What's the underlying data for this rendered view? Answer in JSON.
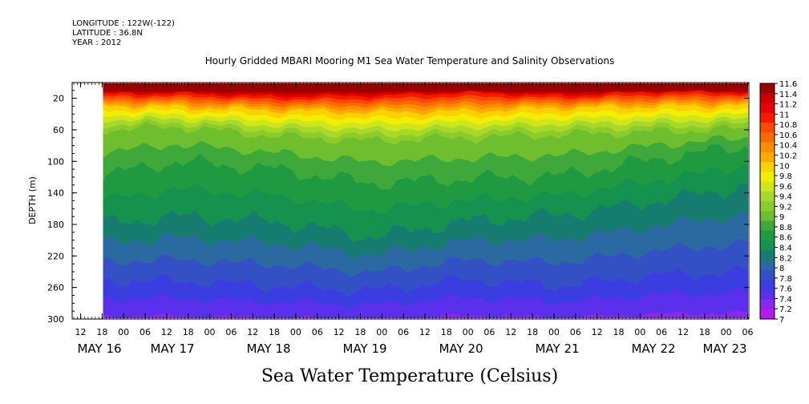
{
  "header": {
    "longitude": "LONGITUDE : 122W(-122)",
    "latitude": "LATITUDE : 36.8N",
    "year": "YEAR : 2012"
  },
  "chart_data": {
    "type": "heatmap",
    "title": "Hourly Gridded MBARI Mooring M1 Sea Water Temperature and Salinity Observations",
    "xlabel": "",
    "ylabel": "DEPTH (m)",
    "colorbar_label": "Sea Water Temperature (Celsius)",
    "y_axis": {
      "ticks": [
        20,
        60,
        100,
        140,
        180,
        220,
        260,
        300
      ],
      "range": [
        10,
        300
      ],
      "inverted": true
    },
    "x_axis": {
      "hour_tick_labels": [
        "12",
        "18",
        "00",
        "06",
        "12",
        "18",
        "00",
        "06",
        "12",
        "18",
        "00",
        "06",
        "12",
        "18",
        "00",
        "06",
        "12",
        "18",
        "00",
        "06",
        "12",
        "18",
        "00",
        "06",
        "12",
        "18",
        "00",
        "06",
        "12",
        "18",
        "00",
        "06"
      ],
      "day_labels": [
        "MAY 16",
        "MAY 17",
        "MAY 18",
        "MAY 19",
        "MAY 20",
        "MAY 21",
        "MAY 22",
        "MAY 23"
      ],
      "range_hours_from_first_tick": [
        0,
        282
      ]
    },
    "data_start_label": "MAY 16 18",
    "colorbar": {
      "levels": [
        "11.6",
        "11.4",
        "11.2",
        "11",
        "10.8",
        "10.6",
        "10.4",
        "10.2",
        "10",
        "9.8",
        "9.6",
        "9.4",
        "9.2",
        "9",
        "8.8",
        "8.6",
        "8.4",
        "8.2",
        "8",
        "7.8",
        "7.6",
        "7.4",
        "7.2",
        "7"
      ],
      "colors": [
        "#9a0000",
        "#c80000",
        "#e60000",
        "#f81800",
        "#fa4a00",
        "#fb6a00",
        "#fc8c00",
        "#fdaa00",
        "#fdd000",
        "#f2ee00",
        "#cfe61c",
        "#a8d82a",
        "#8ccc2a",
        "#6fbe2e",
        "#3ea83a",
        "#1f9a40",
        "#14924e",
        "#177c70",
        "#2a6aa0",
        "#3350c4",
        "#3a3ee0",
        "#5a30ec",
        "#8a28f0",
        "#b818f4"
      ],
      "range": [
        7,
        11.6
      ]
    },
    "approx_isotherm_depths_m": {
      "time_hours_from_first_tick": [
        6,
        40,
        80,
        120,
        160,
        200,
        240,
        282
      ],
      "t11_0": [
        15,
        14,
        18,
        17,
        13,
        17,
        12,
        13
      ],
      "t10_0": [
        29,
        31,
        35,
        38,
        36,
        32,
        30,
        28
      ],
      "t9_0": [
        60,
        56,
        68,
        74,
        70,
        66,
        62,
        58
      ],
      "t8_6": [
        120,
        100,
        110,
        128,
        122,
        118,
        96,
        78
      ],
      "t8_2": [
        180,
        170,
        176,
        196,
        176,
        168,
        150,
        128
      ],
      "t7_6": [
        252,
        252,
        258,
        264,
        250,
        258,
        244,
        240
      ]
    }
  }
}
